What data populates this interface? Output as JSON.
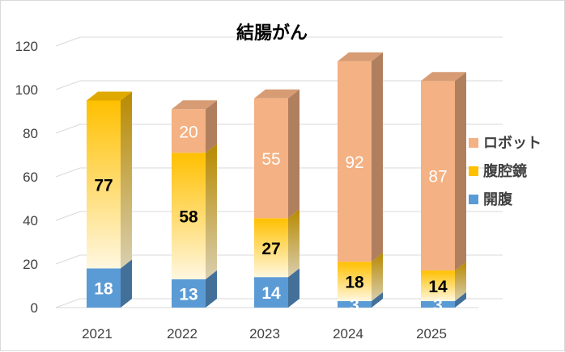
{
  "chart_data": {
    "type": "bar",
    "stacked": true,
    "three_d": true,
    "title": "結腸がん",
    "xlabel": "",
    "ylabel": "",
    "categories": [
      "2021",
      "2022",
      "2023",
      "2024",
      "2025"
    ],
    "ylim": [
      0,
      120
    ],
    "yticks": [
      0,
      20,
      40,
      60,
      80,
      100,
      120
    ],
    "grid": true,
    "legend_position": "right",
    "series": [
      {
        "name": "開腹",
        "values": [
          18,
          13,
          14,
          3,
          3
        ],
        "color": "#5b9bd5",
        "label_color": "#ffffff"
      },
      {
        "name": "腹腔鏡",
        "values": [
          77,
          58,
          27,
          18,
          14
        ],
        "color": "#ffc000",
        "label_color": "#000000"
      },
      {
        "name": "ロボット",
        "values": [
          null,
          20,
          55,
          92,
          87
        ],
        "color": "#f4b183",
        "label_color": "#ffffff"
      }
    ]
  }
}
